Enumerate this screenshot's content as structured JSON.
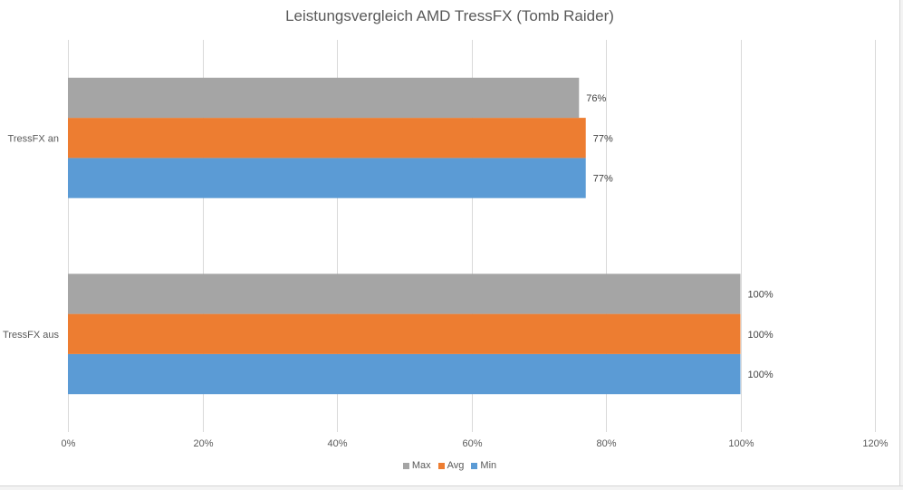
{
  "chart_data": {
    "type": "bar",
    "orientation": "horizontal",
    "title": "Leistungsvergleich AMD TressFX (Tomb Raider)",
    "categories": [
      "TressFX aus",
      "TressFX an"
    ],
    "series": [
      {
        "name": "Min",
        "color": "#5B9BD5",
        "values": [
          100,
          77
        ],
        "labels": [
          "100%",
          "77%"
        ]
      },
      {
        "name": "Avg",
        "color": "#ED7D31",
        "values": [
          100,
          77
        ],
        "labels": [
          "100%",
          "77%"
        ]
      },
      {
        "name": "Max",
        "color": "#A5A5A5",
        "values": [
          100,
          76
        ],
        "labels": [
          "100%",
          "76%"
        ]
      }
    ],
    "xlim": [
      0,
      120
    ],
    "xticks": [
      0,
      20,
      40,
      60,
      80,
      100,
      120
    ],
    "xtick_labels": [
      "0%",
      "20%",
      "40%",
      "60%",
      "80%",
      "100%",
      "120%"
    ],
    "grid": true,
    "legend_position": "bottom",
    "legend_order": [
      "Max",
      "Avg",
      "Min"
    ]
  }
}
